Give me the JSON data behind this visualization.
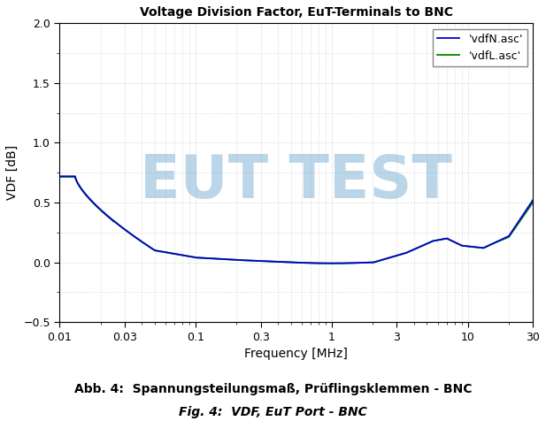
{
  "title": "Voltage Division Factor, EuT-Terminals to BNC",
  "xlabel": "Frequency [MHz]",
  "ylabel": "VDF [dB]",
  "xlim": [
    0.01,
    30
  ],
  "ylim": [
    -0.5,
    2.0
  ],
  "yticks": [
    -0.5,
    0.0,
    0.5,
    1.0,
    1.5,
    2.0
  ],
  "xticks": [
    0.01,
    0.03,
    0.1,
    0.3,
    1,
    3,
    10,
    30
  ],
  "xtick_labels": [
    "0.01",
    "0.03",
    "0.1",
    "0.3",
    "1",
    "3",
    "10",
    "30"
  ],
  "legend_labels": [
    "'vdfN.asc'",
    "'vdfL.asc'"
  ],
  "line_colors_legend": [
    "#0000cc",
    "#00aa00"
  ],
  "line_color_N": "#0000cc",
  "line_color_L": "#008800",
  "watermark_text": "EUT TEST",
  "watermark_color": "#7aafd4",
  "watermark_alpha": 0.5,
  "caption1": "Abb. 4:  Spannungsteilungsmaß, Prüflingsklemmen - BNC",
  "caption2": "Fig. 4:  VDF, EuT Port - BNC",
  "background_color": "#ffffff",
  "grid_color": "#bbbbbb",
  "title_color": "#000000",
  "title_fontsize": 10,
  "axis_fontsize": 10,
  "tick_fontsize": 9,
  "legend_fontsize": 9,
  "caption1_fontsize": 10,
  "caption2_fontsize": 10
}
